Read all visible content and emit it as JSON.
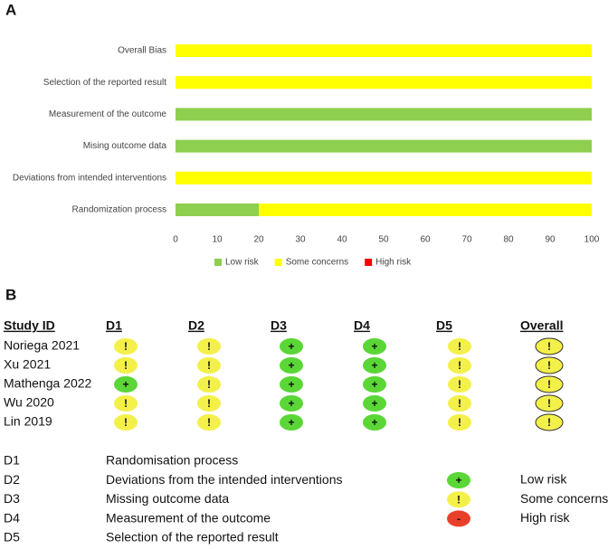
{
  "chart_data": {
    "type": "stacked-barh",
    "panel_label": "A",
    "categories": [
      "Overall Bias",
      "Selection of the reported result",
      "Measurement of the outcome",
      "Mising outcome data",
      "Deviations from intended interventions",
      "Randomization process"
    ],
    "series": [
      {
        "name": "Low risk",
        "color": "#8fcf4f",
        "values": [
          0,
          0,
          100,
          100,
          0,
          20
        ]
      },
      {
        "name": "Some concerns",
        "color": "#ffff00",
        "values": [
          100,
          100,
          0,
          0,
          100,
          80
        ]
      },
      {
        "name": "High risk",
        "color": "#ff0000",
        "values": [
          0,
          0,
          0,
          0,
          0,
          0
        ]
      }
    ],
    "xlim": [
      0,
      100
    ],
    "xticks": [
      0,
      10,
      20,
      30,
      40,
      50,
      60,
      70,
      80,
      90,
      100
    ],
    "grid": false,
    "legend": "bottom"
  },
  "panel_b": {
    "label": "B",
    "table": {
      "header": [
        "Study ID",
        "D1",
        "D2",
        "D3",
        "D4",
        "D5",
        "Overall"
      ],
      "rows": [
        [
          "Noriega 2021",
          "!",
          "!",
          "+",
          "+",
          "!",
          "!"
        ],
        [
          "Xu 2021",
          "!",
          "!",
          "+",
          "+",
          "!",
          "!"
        ],
        [
          "Mathenga 2022",
          "+",
          "!",
          "+",
          "+",
          "!",
          "!"
        ],
        [
          "Wu 2020",
          "!",
          "!",
          "+",
          "+",
          "!",
          "!"
        ],
        [
          "Lin 2019",
          "!",
          "!",
          "+",
          "+",
          "!",
          "!"
        ]
      ]
    },
    "domains": [
      {
        "code": "D1",
        "text": "Randomisation process"
      },
      {
        "code": "D2",
        "text": "Deviations from the intended interventions"
      },
      {
        "code": "D3",
        "text": "Missing outcome data"
      },
      {
        "code": "D4",
        "text": "Measurement of the outcome"
      },
      {
        "code": "D5",
        "text": "Selection of the reported result"
      }
    ],
    "judgements": [
      {
        "symbol": "+",
        "text": "Low risk"
      },
      {
        "symbol": "!",
        "text": "Some concerns"
      },
      {
        "symbol": "-",
        "text": "High risk"
      }
    ]
  }
}
